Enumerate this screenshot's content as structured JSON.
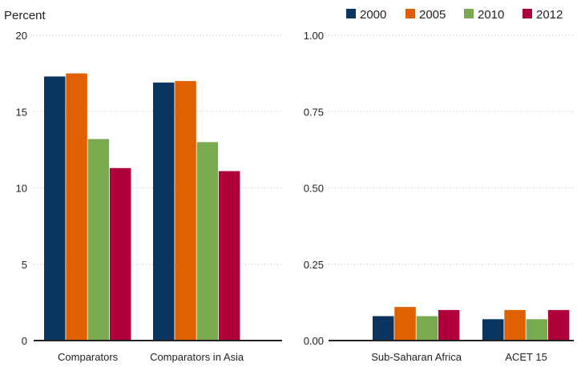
{
  "colors": {
    "2000": "#0a3560",
    "2005": "#e06000",
    "2010": "#7aaa50",
    "2012": "#b0003a"
  },
  "legend": [
    "2000",
    "2005",
    "2010",
    "2012"
  ],
  "chart_data": [
    {
      "type": "bar",
      "ylabel": "Percent",
      "ylim": [
        0,
        20
      ],
      "yticks": [
        "0",
        "5",
        "10",
        "15",
        "20"
      ],
      "categories": [
        "Comparators",
        "Comparators in Asia"
      ],
      "series": [
        {
          "name": "2000",
          "values": [
            17.3,
            16.9
          ]
        },
        {
          "name": "2005",
          "values": [
            17.5,
            17.0
          ]
        },
        {
          "name": "2010",
          "values": [
            13.2,
            13.0
          ]
        },
        {
          "name": "2012",
          "values": [
            11.3,
            11.1
          ]
        }
      ],
      "grid": true
    },
    {
      "type": "bar",
      "ylim": [
        0,
        1.0
      ],
      "yticks": [
        "0.00",
        "0.25",
        "0.50",
        "0.75",
        "1.00"
      ],
      "categories": [
        "Sub-Saharan Africa",
        "ACET 15"
      ],
      "series": [
        {
          "name": "2000",
          "values": [
            0.08,
            0.07
          ]
        },
        {
          "name": "2005",
          "values": [
            0.11,
            0.1
          ]
        },
        {
          "name": "2010",
          "values": [
            0.08,
            0.07
          ]
        },
        {
          "name": "2012",
          "values": [
            0.1,
            0.1
          ]
        }
      ],
      "grid": true
    }
  ]
}
